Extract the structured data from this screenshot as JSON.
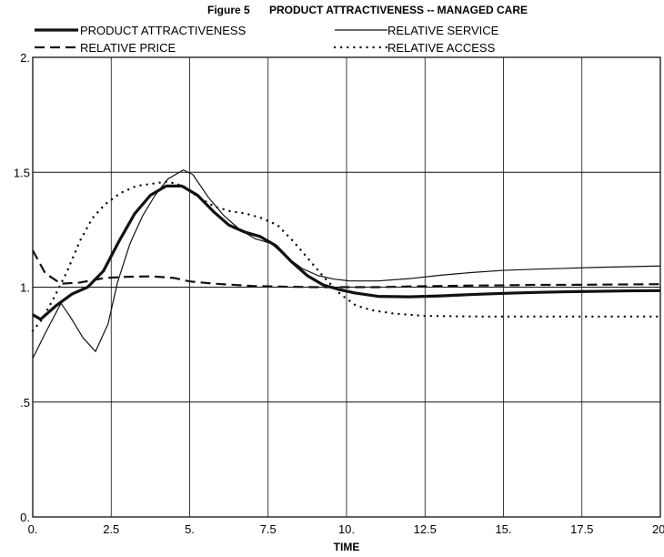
{
  "chart_data": {
    "type": "line",
    "title_prefix": "Figure 5",
    "title": "PRODUCT ATTRACTIVENESS -- MANAGED CARE",
    "xlabel": "TIME",
    "ylabel": "",
    "xlim": [
      0,
      20
    ],
    "ylim": [
      0,
      2
    ],
    "x_ticks": [
      {
        "v": 0,
        "label": "0."
      },
      {
        "v": 2.5,
        "label": "2.5"
      },
      {
        "v": 5,
        "label": "5."
      },
      {
        "v": 7.5,
        "label": "7.5"
      },
      {
        "v": 10,
        "label": "10."
      },
      {
        "v": 12.5,
        "label": "12.5"
      },
      {
        "v": 15,
        "label": "15."
      },
      {
        "v": 17.5,
        "label": "17.5"
      },
      {
        "v": 20,
        "label": "20."
      }
    ],
    "y_ticks": [
      {
        "v": 0,
        "label": "0."
      },
      {
        "v": 0.5,
        "label": ".5"
      },
      {
        "v": 1,
        "label": "1."
      },
      {
        "v": 1.5,
        "label": "1.5"
      },
      {
        "v": 2,
        "label": "2."
      }
    ],
    "grid": true,
    "legend_position": "top",
    "series": [
      {
        "name": "PRODUCT ATTRACTIVENESS",
        "style": "thick",
        "points": [
          [
            0,
            0.88
          ],
          [
            0.25,
            0.86
          ],
          [
            0.75,
            0.92
          ],
          [
            1.25,
            0.97
          ],
          [
            1.75,
            1.0
          ],
          [
            2.25,
            1.07
          ],
          [
            2.75,
            1.2
          ],
          [
            3.25,
            1.32
          ],
          [
            3.75,
            1.4
          ],
          [
            4.25,
            1.44
          ],
          [
            4.75,
            1.44
          ],
          [
            5.25,
            1.4
          ],
          [
            5.75,
            1.33
          ],
          [
            6.25,
            1.27
          ],
          [
            6.75,
            1.24
          ],
          [
            7.25,
            1.22
          ],
          [
            7.75,
            1.18
          ],
          [
            8.25,
            1.11
          ],
          [
            8.75,
            1.05
          ],
          [
            9.25,
            1.01
          ],
          [
            9.75,
            0.99
          ],
          [
            10.25,
            0.975
          ],
          [
            11,
            0.96
          ],
          [
            12,
            0.958
          ],
          [
            13,
            0.962
          ],
          [
            14,
            0.968
          ],
          [
            15,
            0.973
          ],
          [
            16,
            0.977
          ],
          [
            17,
            0.98
          ],
          [
            18,
            0.982
          ],
          [
            19,
            0.984
          ],
          [
            20,
            0.985
          ]
        ]
      },
      {
        "name": "RELATIVE SERVICE",
        "style": "thin",
        "points": [
          [
            0,
            0.69
          ],
          [
            0.4,
            0.8
          ],
          [
            0.9,
            0.93
          ],
          [
            1.2,
            0.87
          ],
          [
            1.6,
            0.78
          ],
          [
            2.0,
            0.72
          ],
          [
            2.4,
            0.84
          ],
          [
            2.7,
            1.02
          ],
          [
            3.1,
            1.19
          ],
          [
            3.5,
            1.31
          ],
          [
            3.9,
            1.4
          ],
          [
            4.3,
            1.47
          ],
          [
            4.8,
            1.51
          ],
          [
            5.1,
            1.49
          ],
          [
            5.6,
            1.39
          ],
          [
            6.1,
            1.31
          ],
          [
            6.6,
            1.25
          ],
          [
            7.1,
            1.21
          ],
          [
            7.6,
            1.19
          ],
          [
            8.1,
            1.13
          ],
          [
            8.6,
            1.08
          ],
          [
            9.1,
            1.05
          ],
          [
            9.6,
            1.035
          ],
          [
            10.1,
            1.027
          ],
          [
            11,
            1.027
          ],
          [
            12,
            1.037
          ],
          [
            13,
            1.052
          ],
          [
            14,
            1.064
          ],
          [
            15,
            1.073
          ],
          [
            16,
            1.078
          ],
          [
            17,
            1.082
          ],
          [
            18,
            1.086
          ],
          [
            19,
            1.089
          ],
          [
            20,
            1.092
          ]
        ]
      },
      {
        "name": "RELATIVE PRICE",
        "style": "dashed",
        "points": [
          [
            0,
            1.16
          ],
          [
            0.4,
            1.06
          ],
          [
            0.9,
            1.015
          ],
          [
            1.5,
            1.02
          ],
          [
            2.3,
            1.04
          ],
          [
            3,
            1.045
          ],
          [
            3.8,
            1.047
          ],
          [
            4.5,
            1.04
          ],
          [
            5,
            1.025
          ],
          [
            5.8,
            1.015
          ],
          [
            7,
            1.005
          ],
          [
            8,
            1.002
          ],
          [
            9,
            1.0
          ],
          [
            10,
            1.0
          ],
          [
            11,
            1.0
          ],
          [
            12,
            1.003
          ],
          [
            13,
            1.005
          ],
          [
            14,
            1.007
          ],
          [
            15,
            1.008
          ],
          [
            16,
            1.01
          ],
          [
            17,
            1.01
          ],
          [
            18,
            1.011
          ],
          [
            19,
            1.012
          ],
          [
            20,
            1.013
          ]
        ]
      },
      {
        "name": "RELATIVE ACCESS",
        "style": "dotted",
        "points": [
          [
            0,
            0.81
          ],
          [
            0.3,
            0.86
          ],
          [
            0.7,
            0.96
          ],
          [
            1.1,
            1.07
          ],
          [
            1.5,
            1.2
          ],
          [
            1.9,
            1.3
          ],
          [
            2.3,
            1.36
          ],
          [
            2.8,
            1.41
          ],
          [
            3.3,
            1.44
          ],
          [
            3.8,
            1.45
          ],
          [
            4.3,
            1.46
          ],
          [
            4.8,
            1.44
          ],
          [
            5.3,
            1.39
          ],
          [
            5.8,
            1.35
          ],
          [
            6.3,
            1.33
          ],
          [
            6.8,
            1.32
          ],
          [
            7.3,
            1.3
          ],
          [
            7.8,
            1.27
          ],
          [
            8.3,
            1.2
          ],
          [
            8.8,
            1.12
          ],
          [
            9.3,
            1.04
          ],
          [
            9.8,
            0.97
          ],
          [
            10.3,
            0.92
          ],
          [
            10.8,
            0.9
          ],
          [
            11.5,
            0.885
          ],
          [
            12.5,
            0.875
          ],
          [
            13.5,
            0.873
          ],
          [
            14.5,
            0.872
          ],
          [
            15.5,
            0.872
          ],
          [
            16.5,
            0.872
          ],
          [
            17.5,
            0.872
          ],
          [
            18.5,
            0.872
          ],
          [
            19.5,
            0.872
          ],
          [
            20,
            0.872
          ]
        ]
      }
    ]
  }
}
